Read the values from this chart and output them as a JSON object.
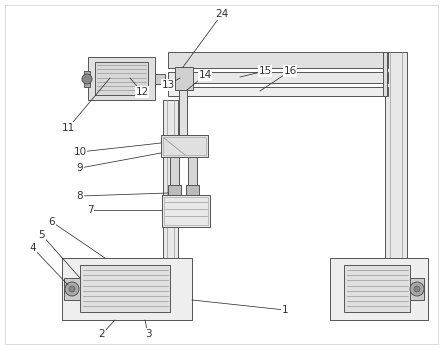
{
  "bg_color": "#ffffff",
  "lc": "#555555",
  "dk": "#333333",
  "mg": "#999999",
  "lg": "#cccccc",
  "fig_width": 4.43,
  "fig_height": 3.49,
  "label_fontsize": 7.5
}
